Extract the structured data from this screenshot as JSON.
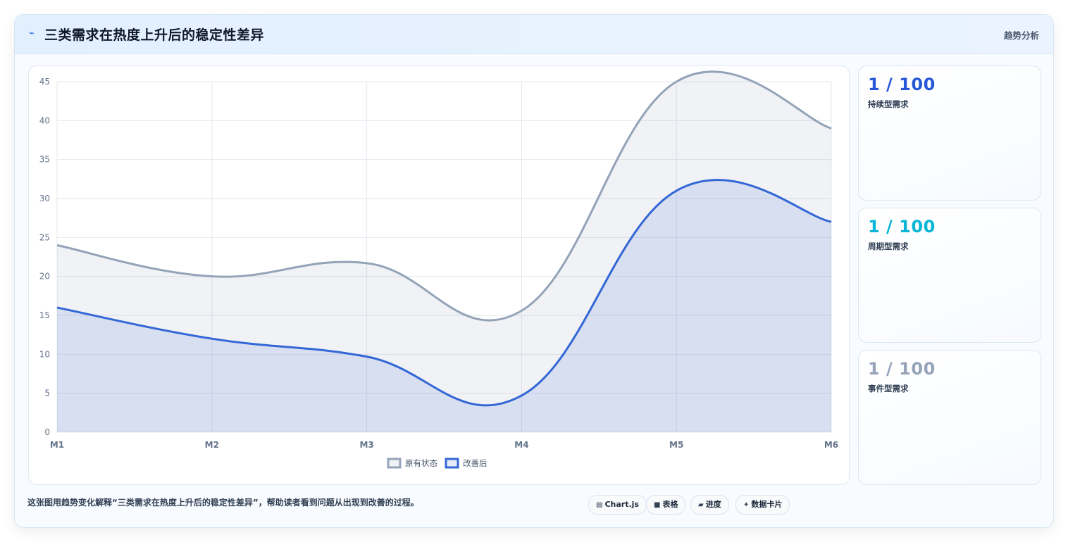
{
  "header": {
    "title": "三类需求在热度上升后的稳定性差异",
    "tag": "趋势分析",
    "icon": "lightning-icon"
  },
  "stats": [
    {
      "value": "1 / 100",
      "label": "持续型需求",
      "color": "#2557d6"
    },
    {
      "value": "1 / 100",
      "label": "周期型需求",
      "color": "#06b6d4"
    },
    {
      "value": "1 / 100",
      "label": "事件型需求",
      "color": "#94a3b8"
    }
  ],
  "footer": {
    "description": "这张图用趋势变化解释“三类需求在热度上升后的稳定性差异”，帮助读者看到问题从出现到改善的过程。",
    "chips": [
      {
        "icon": "chart-icon",
        "label": "Chart.js"
      },
      {
        "icon": "table-icon",
        "label": "表格"
      },
      {
        "icon": "progress-icon",
        "label": "进度"
      },
      {
        "icon": "card-icon",
        "label": "数据卡片"
      }
    ]
  },
  "chart_data": {
    "type": "area",
    "categories": [
      "M1",
      "M2",
      "M3",
      "M4",
      "M5",
      "M6"
    ],
    "ylim": [
      0,
      45
    ],
    "yticks": [
      0,
      5,
      10,
      15,
      20,
      25,
      30,
      35,
      40,
      45
    ],
    "grid": true,
    "legend_position": "bottom",
    "series": [
      {
        "name": "原有状态",
        "values": [
          24,
          20,
          21.7,
          15.6,
          45,
          39
        ],
        "color": "#94a3b8",
        "fill": "rgba(148,163,184,0.14)"
      },
      {
        "name": "改善后",
        "values": [
          16,
          12,
          9.7,
          4.7,
          31,
          27
        ],
        "color": "#3467d6",
        "fill": "rgba(52,103,214,0.13)"
      }
    ]
  }
}
